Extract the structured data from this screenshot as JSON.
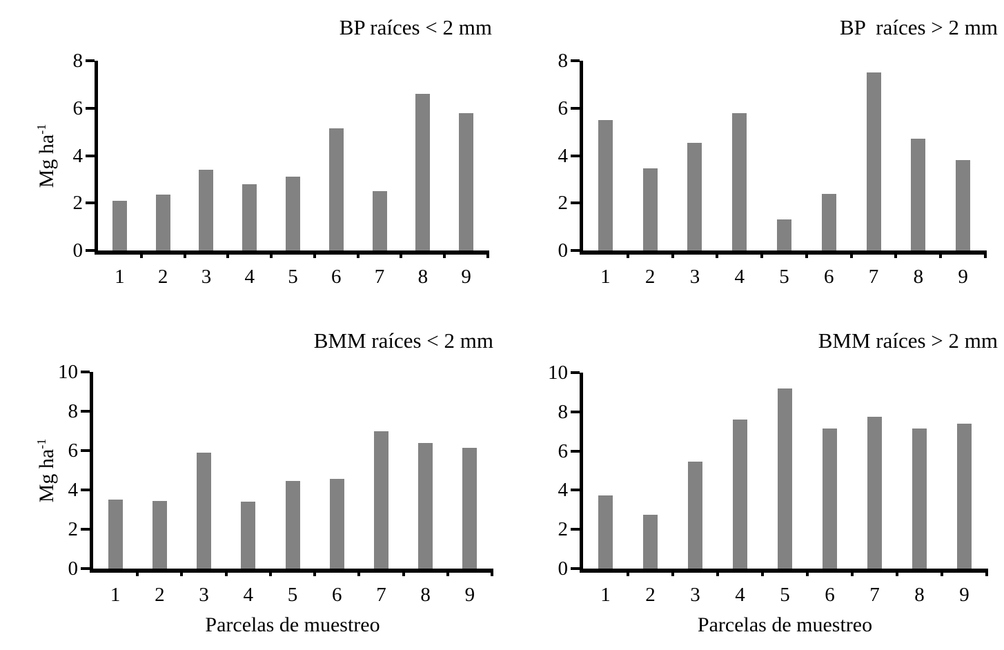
{
  "styles": {
    "bar_color": "#828282",
    "axis_color": "#000000",
    "background": "#ffffff",
    "text_color": "#000000"
  },
  "chart_data": [
    {
      "type": "bar",
      "title": "BP raíces < 2 mm",
      "categories": [
        "1",
        "2",
        "3",
        "4",
        "5",
        "6",
        "7",
        "8",
        "9"
      ],
      "values": [
        2.1,
        2.35,
        3.4,
        2.8,
        3.1,
        5.15,
        2.5,
        6.6,
        5.8
      ],
      "ylabel": "Mg ha",
      "ylabel_sup": "-1",
      "xlabel": "",
      "ylim": [
        0,
        8
      ],
      "yticks": [
        0,
        2,
        4,
        6,
        8
      ],
      "grid": false,
      "legend": false,
      "title_position": "top-right"
    },
    {
      "type": "bar",
      "title": "BP  raíces > 2 mm",
      "categories": [
        "1",
        "2",
        "3",
        "4",
        "5",
        "6",
        "7",
        "8",
        "9"
      ],
      "values": [
        5.5,
        3.45,
        4.55,
        5.8,
        1.3,
        2.4,
        7.5,
        4.7,
        3.8
      ],
      "ylabel": "",
      "ylabel_sup": "",
      "xlabel": "",
      "ylim": [
        0,
        8
      ],
      "yticks": [
        0,
        2,
        4,
        6,
        8
      ],
      "grid": false,
      "legend": false,
      "title_position": "top-right"
    },
    {
      "type": "bar",
      "title": "BMM raíces < 2 mm",
      "categories": [
        "1",
        "2",
        "3",
        "4",
        "5",
        "6",
        "7",
        "8",
        "9"
      ],
      "values": [
        3.5,
        3.45,
        5.9,
        3.4,
        4.45,
        4.55,
        7.0,
        6.4,
        6.15
      ],
      "ylabel": "Mg ha",
      "ylabel_sup": "-1",
      "xlabel": "Parcelas de muestreo",
      "ylim": [
        0,
        10
      ],
      "yticks": [
        0,
        2,
        4,
        6,
        8,
        10
      ],
      "grid": false,
      "legend": false,
      "title_position": "top-right"
    },
    {
      "type": "bar",
      "title": "BMM raíces > 2 mm",
      "categories": [
        "1",
        "2",
        "3",
        "4",
        "5",
        "6",
        "7",
        "8",
        "9"
      ],
      "values": [
        3.75,
        2.75,
        5.45,
        7.6,
        9.2,
        7.15,
        7.75,
        7.15,
        7.4
      ],
      "ylabel": "",
      "ylabel_sup": "",
      "xlabel": "Parcelas de muestreo",
      "ylim": [
        0,
        10
      ],
      "yticks": [
        0,
        2,
        4,
        6,
        8,
        10
      ],
      "grid": false,
      "legend": false,
      "title_position": "top-right"
    }
  ]
}
